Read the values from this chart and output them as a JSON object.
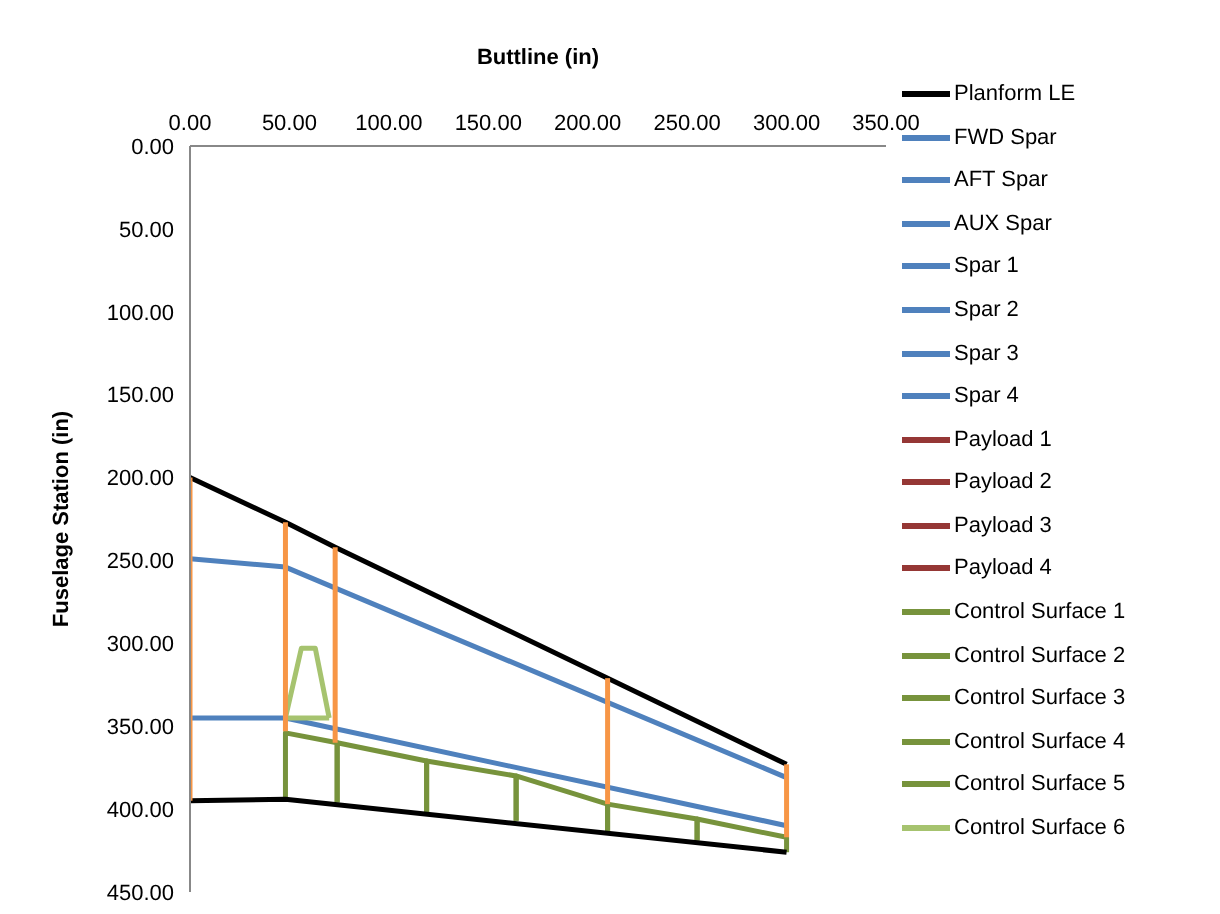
{
  "chart_data": {
    "type": "line",
    "xlabel": "Buttline (in)",
    "ylabel": "Fuselage Station (in)",
    "xlim": [
      0,
      350
    ],
    "xticks": [
      {
        "value": 0,
        "label": "0.00"
      },
      {
        "value": 50,
        "label": "50.00"
      },
      {
        "value": 100,
        "label": "100.00"
      },
      {
        "value": 150,
        "label": "150.00"
      },
      {
        "value": 200,
        "label": "200.00"
      },
      {
        "value": 250,
        "label": "250.00"
      },
      {
        "value": 300,
        "label": "300.00"
      },
      {
        "value": 350,
        "label": "350.00"
      }
    ],
    "ylim": [
      450,
      0
    ],
    "yticks": [
      {
        "value": 0,
        "label": "0.00"
      },
      {
        "value": 50,
        "label": "50.00"
      },
      {
        "value": 100,
        "label": "100.00"
      },
      {
        "value": 150,
        "label": "150.00"
      },
      {
        "value": 200,
        "label": "200.00"
      },
      {
        "value": 250,
        "label": "250.00"
      },
      {
        "value": 300,
        "label": "300.00"
      },
      {
        "value": 350,
        "label": "350.00"
      },
      {
        "value": 400,
        "label": "400.00"
      },
      {
        "value": 450,
        "label": "450.00"
      }
    ],
    "grid": false,
    "legend": "right",
    "marker": "none",
    "series": [
      {
        "name": "Planform LE",
        "color": "#000000",
        "x": [
          0,
          48,
          73,
          300
        ],
        "values": [
          200,
          227,
          242,
          373
        ]
      },
      {
        "name": "FWD Spar",
        "color": "#4f81bd",
        "x": [
          0,
          48,
          300
        ],
        "values": [
          249,
          254,
          381
        ]
      },
      {
        "name": "AFT Spar",
        "color": "#4f81bd",
        "x": [
          0,
          48,
          300
        ],
        "values": [
          345,
          345,
          410
        ]
      },
      {
        "name": "AUX Spar",
        "color": "#4f81bd"
      },
      {
        "name": "Spar 1",
        "color": "#4f81bd"
      },
      {
        "name": "Spar 2",
        "color": "#4f81bd"
      },
      {
        "name": "Spar 3",
        "color": "#4f81bd"
      },
      {
        "name": "Spar 4",
        "color": "#4f81bd"
      },
      {
        "name": "Payload 1",
        "color": "#953735"
      },
      {
        "name": "Payload 2",
        "color": "#953735"
      },
      {
        "name": "Payload 3",
        "color": "#953735"
      },
      {
        "name": "Payload 4",
        "color": "#953735"
      },
      {
        "name": "Control Surface 1",
        "color": "#77933c",
        "x": [
          48,
          48,
          74,
          74
        ],
        "values": [
          394,
          354,
          360,
          396
        ]
      },
      {
        "name": "Control Surface 2",
        "color": "#77933c",
        "x": [
          74,
          74,
          119,
          119
        ],
        "values": [
          396,
          360,
          371,
          403
        ]
      },
      {
        "name": "Control Surface 3",
        "color": "#77933c",
        "x": [
          119,
          119,
          164,
          164
        ],
        "values": [
          403,
          371,
          380,
          407
        ]
      },
      {
        "name": "Control Surface 4",
        "color": "#77933c",
        "x": [
          164,
          164,
          210,
          210
        ],
        "values": [
          407,
          380,
          397,
          415
        ]
      },
      {
        "name": "Control Surface 5",
        "color": "#77933c",
        "x": [
          210,
          210,
          255,
          255
        ],
        "values": [
          415,
          397,
          406,
          419
        ]
      },
      {
        "name": "Control Surface 6",
        "color": "#a6c36f",
        "x": [
          48,
          56,
          63,
          70
        ],
        "values": [
          345,
          303,
          303,
          345
        ]
      },
      {
        "color": "#a6c36f",
        "x": [
          48,
          70
        ],
        "values": [
          345,
          345
        ]
      },
      {
        "color": "#77933c",
        "x": [
          255,
          255,
          300,
          300
        ],
        "values": [
          419,
          406,
          417,
          426
        ]
      },
      {
        "color": "#000000",
        "x": [
          0,
          48,
          300
        ],
        "values": [
          395,
          394,
          426
        ]
      },
      {
        "color": "#f79646",
        "x": [
          0,
          0
        ],
        "values": [
          200,
          395
        ]
      },
      {
        "color": "#f79646",
        "x": [
          48,
          48
        ],
        "values": [
          227,
          353
        ]
      },
      {
        "color": "#f79646",
        "x": [
          73,
          73
        ],
        "values": [
          242,
          360
        ]
      },
      {
        "color": "#f79646",
        "x": [
          210,
          210
        ],
        "values": [
          321,
          397
        ]
      },
      {
        "color": "#f79646",
        "x": [
          300,
          300
        ],
        "values": [
          373,
          417
        ]
      }
    ]
  }
}
